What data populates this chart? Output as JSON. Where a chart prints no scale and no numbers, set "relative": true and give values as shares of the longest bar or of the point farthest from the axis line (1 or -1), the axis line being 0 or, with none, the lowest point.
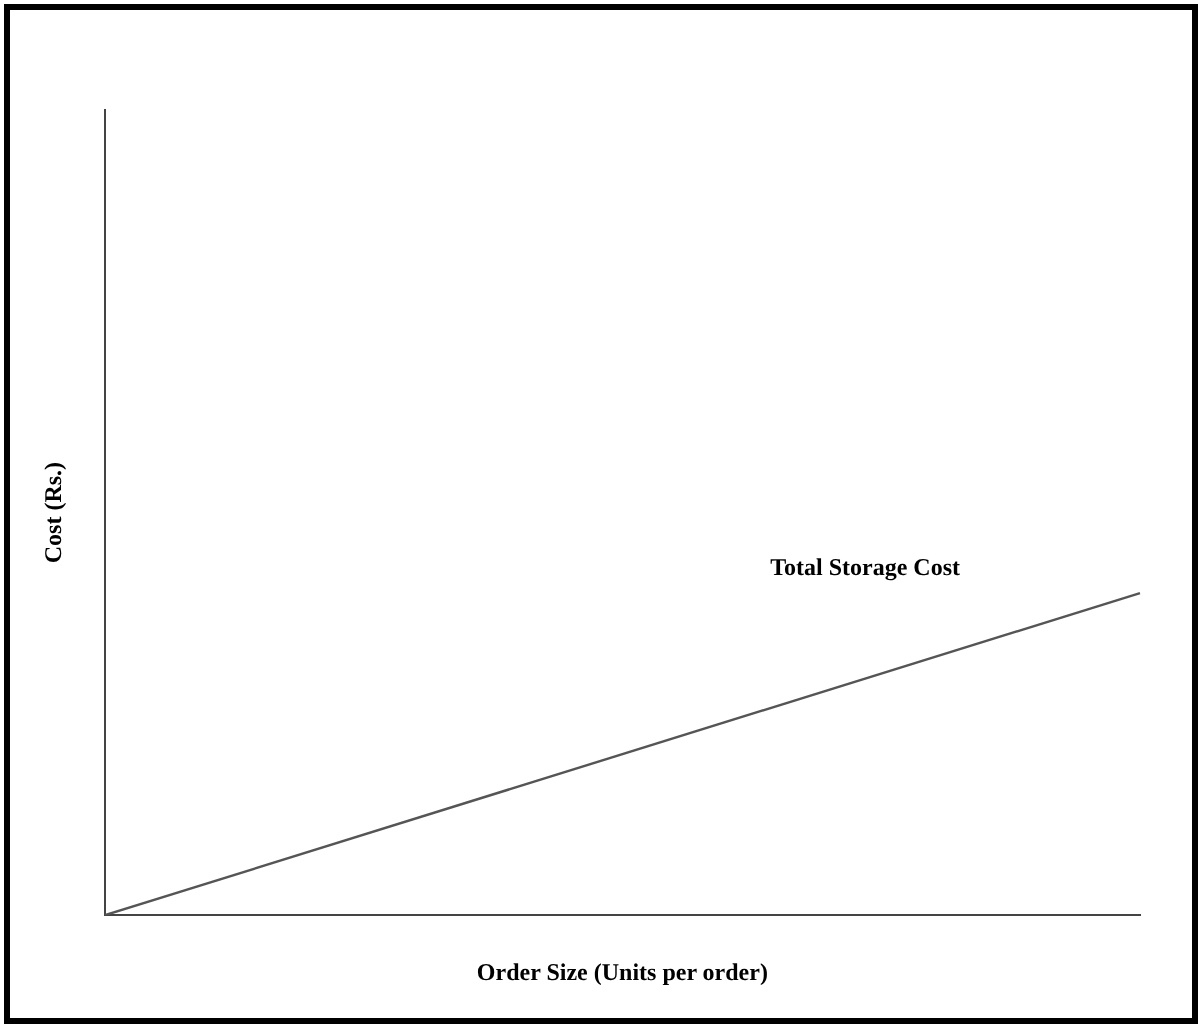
{
  "chart_data": {
    "type": "line",
    "relative": true,
    "xlabel": "Order Size (Units per order)",
    "ylabel": "Cost (Rs.)",
    "categories": [
      null,
      null
    ],
    "series": [
      {
        "name": "Total Storage Cost",
        "color": "#555555",
        "values": [
          0,
          1
        ]
      }
    ],
    "legend": false,
    "marker": "none"
  }
}
